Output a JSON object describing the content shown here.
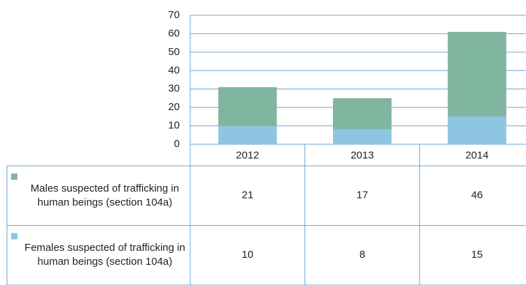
{
  "chart_data": {
    "type": "bar",
    "stacked": true,
    "categories": [
      "2012",
      "2013",
      "2014"
    ],
    "series": [
      {
        "name": "Males suspected of trafficking in human beings (section 104a)",
        "color": "#80b5a0",
        "values": [
          21,
          17,
          46
        ]
      },
      {
        "name": "Females suspected of trafficking in human beings (section 104a)",
        "color": "#8ec5e0",
        "values": [
          10,
          8,
          15
        ]
      }
    ],
    "ylim": [
      0,
      70
    ],
    "yticks": [
      0,
      10,
      20,
      30,
      40,
      50,
      60,
      70
    ],
    "grid": true,
    "data_table": true
  }
}
